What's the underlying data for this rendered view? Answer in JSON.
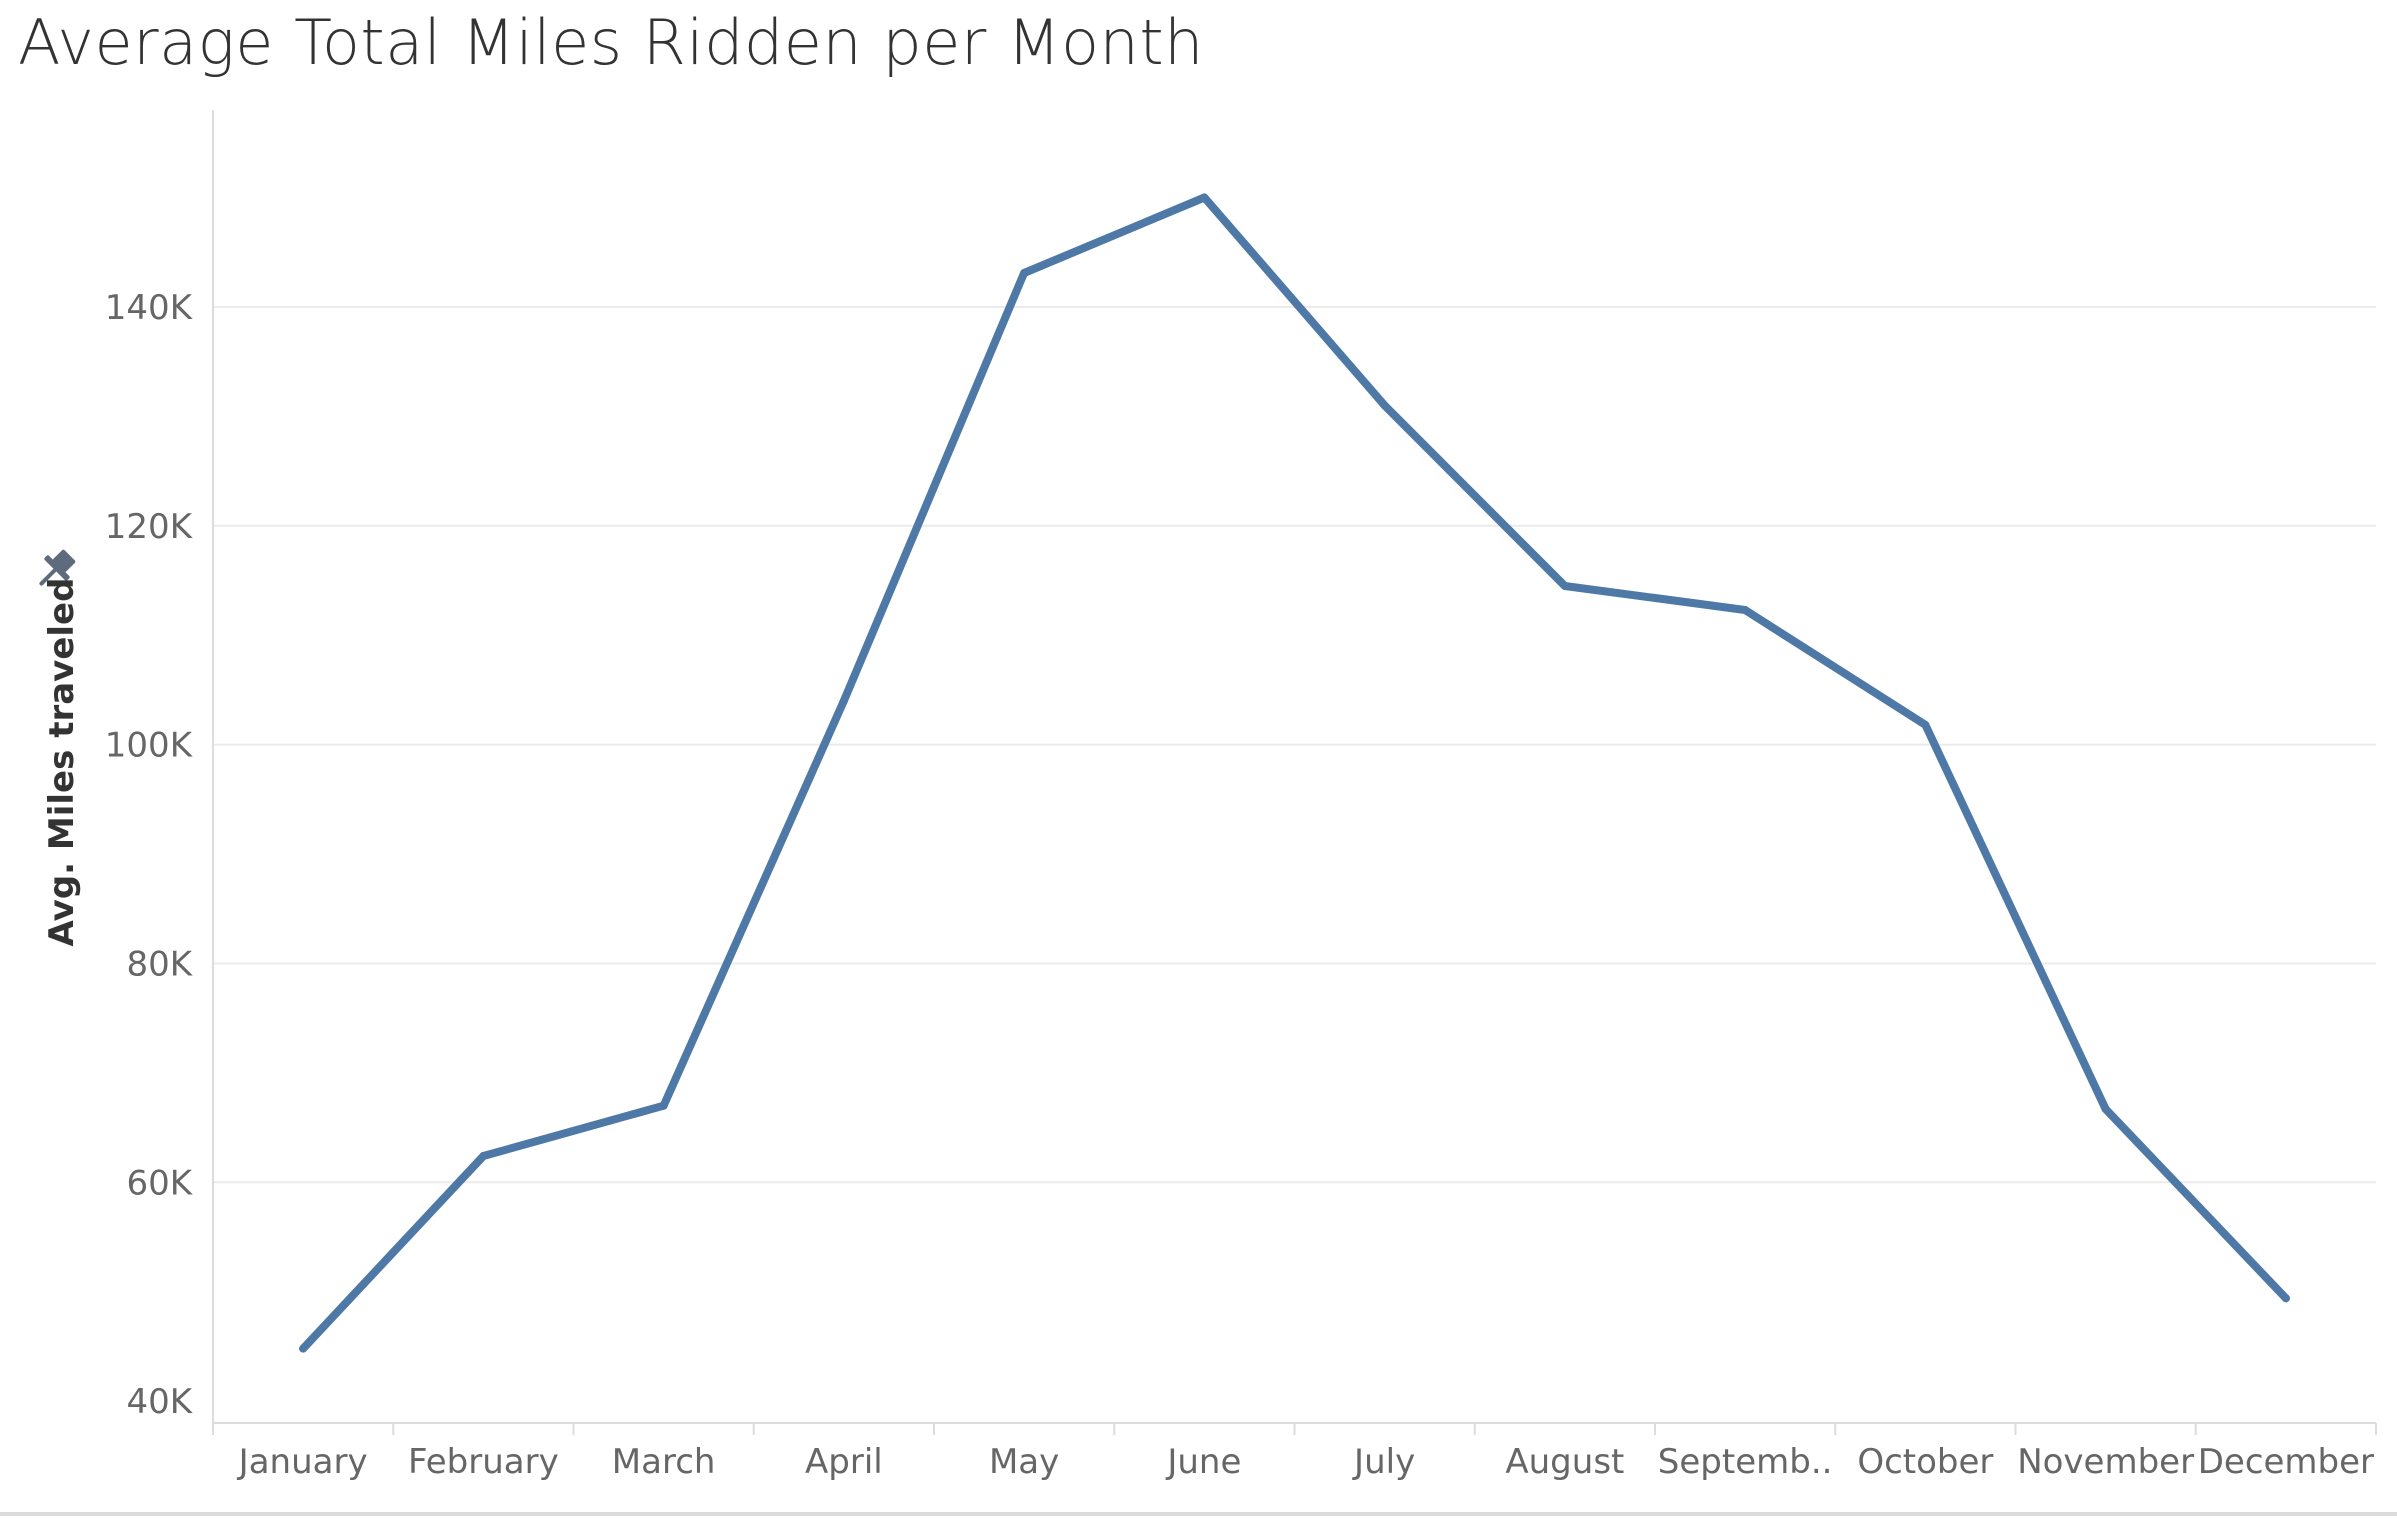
{
  "chart_data": {
    "type": "line",
    "title": "Average Total Miles Ridden per Month",
    "xlabel": "",
    "ylabel": "Avg. Miles traveled",
    "categories": [
      "January",
      "February",
      "March",
      "April",
      "May",
      "June",
      "July",
      "August",
      "Septemb..",
      "October",
      "November",
      "December"
    ],
    "series": [
      {
        "values": [
          44800,
          62400,
          67000,
          104000,
          143100,
          150000,
          131000,
          114500,
          112300,
          101800,
          66700,
          49400
        ]
      }
    ],
    "y_ticks": [
      {
        "value": 40000,
        "label": "40K"
      },
      {
        "value": 60000,
        "label": "60K"
      },
      {
        "value": 80000,
        "label": "80K"
      },
      {
        "value": 100000,
        "label": "100K"
      },
      {
        "value": 120000,
        "label": "120K"
      },
      {
        "value": 140000,
        "label": "140K"
      }
    ],
    "ylim": [
      38000,
      158000
    ],
    "grid": true,
    "colors": {
      "line": "#4e79a7",
      "grid": "#ebebeb",
      "axis": "#dcdcdc",
      "pin_icon": "#5d6b7d"
    }
  },
  "icons": {
    "axis_pin": "pin-icon"
  }
}
